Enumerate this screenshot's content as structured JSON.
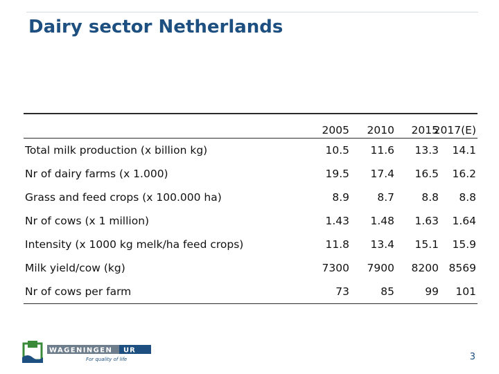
{
  "slide": {
    "title": "Dairy sector Netherlands",
    "page_number": "3"
  },
  "table": {
    "headers": [
      "2005",
      "2010",
      "2015",
      "2017(E)"
    ],
    "rows": [
      {
        "label": "Total milk production (x billion kg)",
        "values": [
          "10.5",
          "11.6",
          "13.3",
          "14.1"
        ]
      },
      {
        "label": "Nr of dairy farms (x 1.000)",
        "values": [
          "19.5",
          "17.4",
          "16.5",
          "16.2"
        ]
      },
      {
        "label": "Grass and feed crops (x 100.000 ha)",
        "values": [
          "8.9",
          "8.7",
          "8.8",
          "8.8"
        ]
      },
      {
        "label": "Nr of cows (x 1 million)",
        "values": [
          "1.43",
          "1.48",
          "1.63",
          "1.64"
        ]
      },
      {
        "label": "Intensity (x 1000 kg melk/ha feed crops)",
        "values": [
          "11.8",
          "13.4",
          "15.1",
          "15.9"
        ]
      },
      {
        "label": "Milk yield/cow (kg)",
        "values": [
          "7300",
          "7900",
          "8200",
          "8569"
        ]
      },
      {
        "label": "Nr of cows per farm",
        "values": [
          "73",
          "85",
          "99",
          "101"
        ]
      }
    ]
  },
  "logo": {
    "name": "WAGENINGEN",
    "suffix": "UR",
    "tagline": "For quality of life",
    "colors": {
      "green": "#3a8a3a",
      "blue": "#1d4f80",
      "gray": "#6d7d8b"
    }
  }
}
